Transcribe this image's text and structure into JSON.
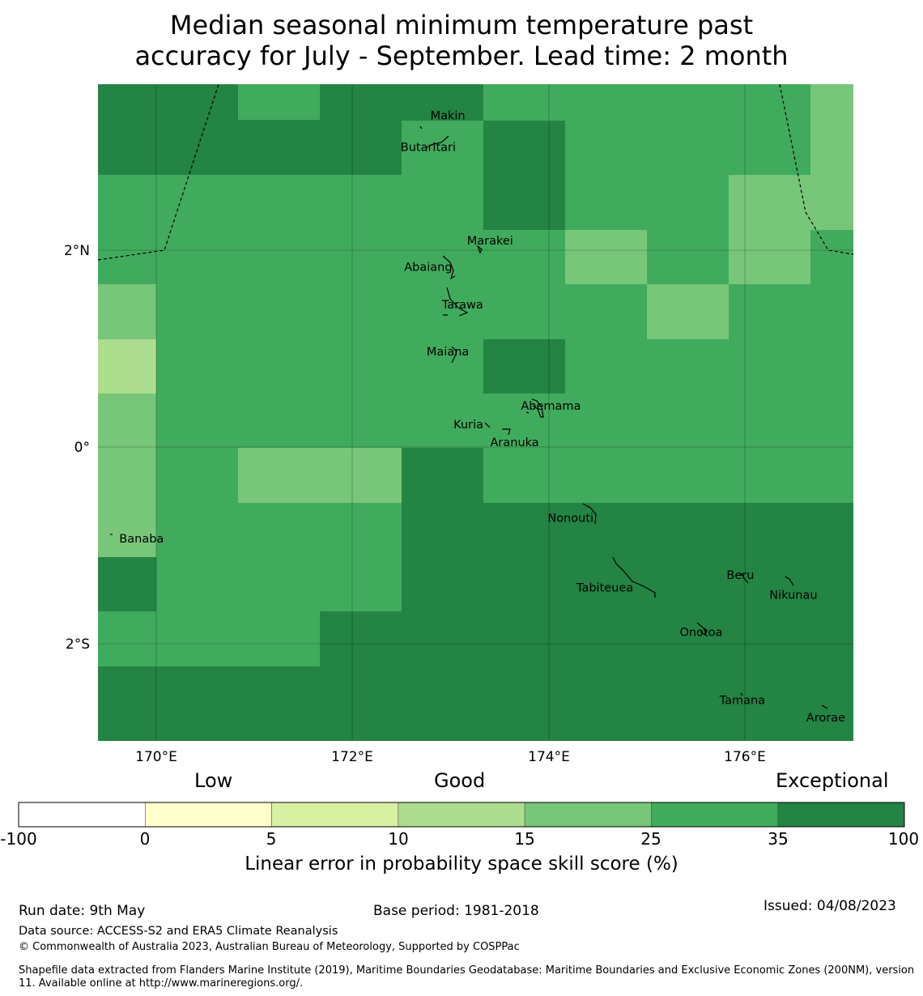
{
  "title": {
    "line1": "Median seasonal minimum temperature past",
    "line2": "accuracy for July - September. Lead time: 2 month"
  },
  "map": {
    "lon_ticks": [
      "170°E",
      "172°E",
      "174°E",
      "176°E"
    ],
    "lat_ticks": [
      "2°N",
      "0°",
      "2°S"
    ],
    "places": [
      {
        "name": "Makin",
        "lon": 172.97,
        "lat": 3.37
      },
      {
        "name": "Butaritari",
        "lon": 172.77,
        "lat": 3.05
      },
      {
        "name": "Marakei",
        "lon": 173.4,
        "lat": 2.1
      },
      {
        "name": "Abaiang",
        "lon": 172.77,
        "lat": 1.83
      },
      {
        "name": "Tarawa",
        "lon": 173.12,
        "lat": 1.45
      },
      {
        "name": "Maiana",
        "lon": 172.97,
        "lat": 0.97
      },
      {
        "name": "Abemama",
        "lon": 174.02,
        "lat": 0.42
      },
      {
        "name": "Kuria",
        "lon": 173.18,
        "lat": 0.23
      },
      {
        "name": "Aranuka",
        "lon": 173.65,
        "lat": 0.05
      },
      {
        "name": "Banaba",
        "lon": 169.85,
        "lat": -0.93
      },
      {
        "name": "Nonouti",
        "lon": 174.22,
        "lat": -0.72
      },
      {
        "name": "Beru",
        "lon": 175.95,
        "lat": -1.3
      },
      {
        "name": "Tabiteuea",
        "lon": 174.57,
        "lat": -1.43
      },
      {
        "name": "Nikunau",
        "lon": 176.49,
        "lat": -1.5
      },
      {
        "name": "Onotoa",
        "lon": 175.55,
        "lat": -1.88
      },
      {
        "name": "Tamana",
        "lon": 175.97,
        "lat": -2.57
      },
      {
        "name": "Arorae",
        "lon": 176.82,
        "lat": -2.75
      }
    ]
  },
  "legend": {
    "categories": [
      "Low",
      "Good",
      "Exceptional"
    ],
    "ticks": [
      "-100",
      "0",
      "5",
      "10",
      "15",
      "25",
      "35",
      "100"
    ],
    "colors": [
      "#ffffff",
      "#ffffcc",
      "#d9f0a3",
      "#addd8e",
      "#78c679",
      "#41ab5d",
      "#238443"
    ],
    "title": "Linear error in probability space skill score (%)"
  },
  "footer": {
    "run_date": "Run date: 9th May",
    "base_period": "Base period: 1981-2018",
    "issued": "Issued: 04/08/2023",
    "data_source": "Data source: ACCESS-S2 and ERA5 Climate Reanalysis",
    "copyright": "© Commonwealth of Australia 2023, Australian Bureau of Meteorology, Supported by COSPPac",
    "shapefile": "Shapefile data extracted from Flanders Marine Institute (2019), Maritime Boundaries Geodatabase: Maritime Boundaries and Exclusive Economic Zones (200NM), version 11. Available online at http://www.marineregions.org/."
  }
}
